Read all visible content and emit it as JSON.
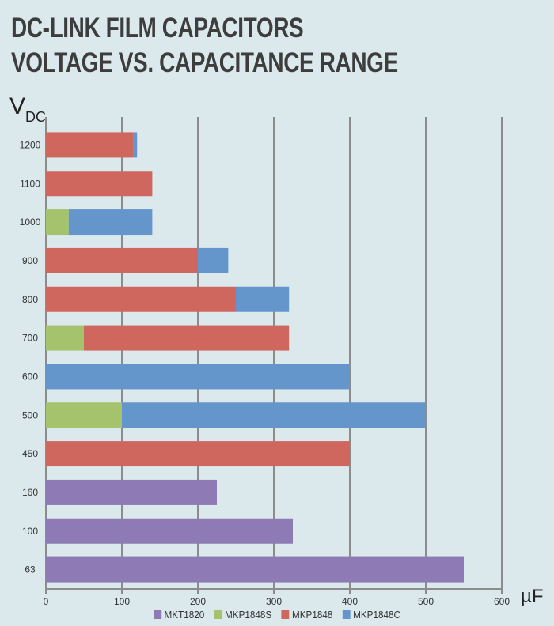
{
  "chart_data": {
    "type": "bar",
    "orientation": "horizontal",
    "stacked": true,
    "title": [
      "DC-LINK FILM CAPACITORS",
      "VOLTAGE VS. CAPACITANCE RANGE"
    ],
    "ylabel": "V",
    "ylabel_sub": "DC",
    "xlabel": "µF",
    "xlim": [
      0,
      600
    ],
    "xticks": [
      "0",
      "100",
      "200",
      "300",
      "400",
      "500",
      "600"
    ],
    "grid": "vertical",
    "legend": "bottom",
    "categories": [
      "1200",
      "1100",
      "1000",
      "900",
      "800",
      "700",
      "600",
      "500",
      "450",
      "160",
      "100",
      "63"
    ],
    "series": [
      {
        "name": "MKT1820",
        "color": "#8e7ab5",
        "values": [
          0,
          0,
          0,
          0,
          0,
          0,
          0,
          0,
          0,
          225,
          325,
          550
        ]
      },
      {
        "name": "MKP1848S",
        "color": "#a5c26c",
        "values": [
          0,
          0,
          30,
          0,
          0,
          50,
          0,
          100,
          0,
          0,
          0,
          0
        ]
      },
      {
        "name": "MKP1848",
        "color": "#d0675e",
        "values": [
          115,
          140,
          0,
          200,
          250,
          270,
          0,
          0,
          400,
          0,
          0,
          0
        ]
      },
      {
        "name": "MKP1848C",
        "color": "#6596cb",
        "values": [
          5,
          0,
          110,
          40,
          70,
          0,
          400,
          400,
          0,
          0,
          0,
          0
        ]
      }
    ]
  }
}
